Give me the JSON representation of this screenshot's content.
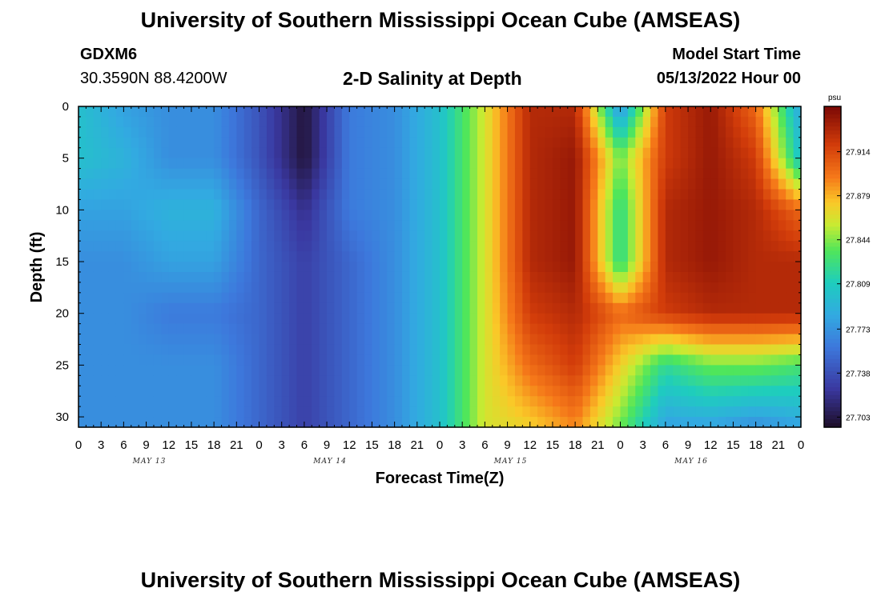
{
  "header": {
    "title": "University of Southern Mississippi Ocean Cube (AMSEAS)",
    "station_id": "GDXM6",
    "coordinates": "30.3590N  88.4200W",
    "plot_title": "2-D Salinity at Depth",
    "model_start_label": "Model Start Time",
    "model_start_value": "05/13/2022 Hour 00"
  },
  "footer": {
    "title": "University of Southern Mississippi Ocean Cube (AMSEAS)"
  },
  "chart_data": {
    "type": "heatmap",
    "title": "2-D Salinity at Depth",
    "xlabel": "Forecast Time(Z)",
    "ylabel": "Depth (ft)",
    "x_unit": "hours from 05/13/2022 00Z",
    "x_range": [
      0,
      96
    ],
    "y_range": [
      0,
      31
    ],
    "x_tick_labels": [
      "0",
      "3",
      "6",
      "9",
      "12",
      "15",
      "18",
      "21",
      "0",
      "3",
      "6",
      "9",
      "12",
      "15",
      "18",
      "21",
      "0",
      "3",
      "6",
      "9",
      "12",
      "15",
      "18",
      "21",
      "0",
      "3",
      "6",
      "9",
      "12",
      "15",
      "18",
      "21",
      "0"
    ],
    "day_labels": [
      "MAY 13",
      "MAY 14",
      "MAY 15",
      "MAY 16"
    ],
    "y_ticks": [
      0,
      5,
      10,
      15,
      20,
      25,
      30
    ],
    "colorbar": {
      "unit": "psu",
      "range": [
        27.695,
        27.95
      ],
      "tick_values": [
        27.703,
        27.738,
        27.773,
        27.809,
        27.844,
        27.879,
        27.914
      ],
      "tick_labels": [
        "27.703",
        "27.738",
        "27.773",
        "27.809",
        "27.844",
        "27.879",
        "27.914"
      ]
    },
    "grid": false,
    "legend": "colorbar-right",
    "depths_ft": [
      0,
      5,
      10,
      15,
      20,
      25,
      31
    ],
    "times_h": [
      0,
      6,
      12,
      18,
      24,
      30,
      36,
      42,
      48,
      54,
      60,
      66,
      72,
      78,
      84,
      90,
      96
    ],
    "values_psu": [
      [
        27.8,
        27.78,
        27.77,
        27.77,
        27.74,
        27.7,
        27.76,
        27.77,
        27.8,
        27.86,
        27.93,
        27.93,
        27.77,
        27.92,
        27.94,
        27.9,
        27.78
      ],
      [
        27.8,
        27.79,
        27.77,
        27.77,
        27.74,
        27.7,
        27.76,
        27.77,
        27.8,
        27.86,
        27.93,
        27.94,
        27.84,
        27.92,
        27.94,
        27.92,
        27.8
      ],
      [
        27.78,
        27.78,
        27.79,
        27.79,
        27.75,
        27.72,
        27.76,
        27.77,
        27.8,
        27.86,
        27.93,
        27.94,
        27.82,
        27.93,
        27.94,
        27.93,
        27.9
      ],
      [
        27.77,
        27.77,
        27.78,
        27.78,
        27.75,
        27.73,
        27.75,
        27.77,
        27.8,
        27.86,
        27.93,
        27.94,
        27.82,
        27.93,
        27.94,
        27.93,
        27.93
      ],
      [
        27.77,
        27.77,
        27.76,
        27.76,
        27.75,
        27.73,
        27.75,
        27.77,
        27.8,
        27.86,
        27.92,
        27.93,
        27.9,
        27.92,
        27.93,
        27.93,
        27.93
      ],
      [
        27.77,
        27.77,
        27.77,
        27.77,
        27.75,
        27.73,
        27.75,
        27.77,
        27.8,
        27.86,
        27.9,
        27.92,
        27.87,
        27.82,
        27.84,
        27.84,
        27.83
      ],
      [
        27.77,
        27.77,
        27.77,
        27.77,
        27.75,
        27.73,
        27.75,
        27.77,
        27.8,
        27.86,
        27.87,
        27.89,
        27.84,
        27.78,
        27.78,
        27.77,
        27.78
      ]
    ]
  }
}
